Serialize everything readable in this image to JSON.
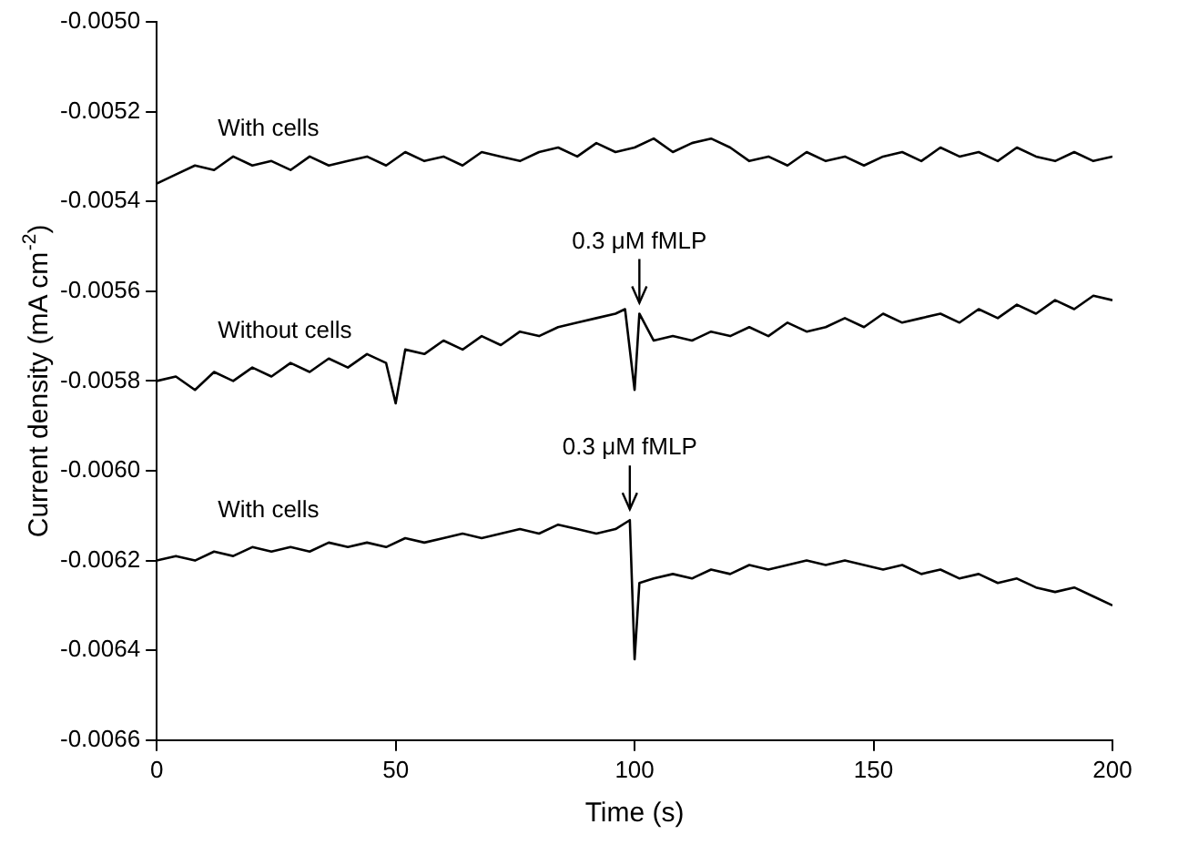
{
  "chart_data": {
    "type": "line",
    "xlabel": "Time (s)",
    "ylabel": "Current density (mA cm$^{-2}$)",
    "xlim": [
      0,
      200
    ],
    "xticks": [
      0,
      50,
      100,
      150,
      200
    ],
    "ylim": [
      -0.0066,
      -0.005
    ],
    "yticks": [
      {
        "value": -0.0066,
        "label": "-0.0066"
      },
      {
        "value": -0.0064,
        "label": "-0.0064"
      },
      {
        "value": -0.0062,
        "label": "-0.0062"
      },
      {
        "value": -0.006,
        "label": "-0.0060"
      },
      {
        "value": -0.0058,
        "label": "-0.0058"
      },
      {
        "value": -0.0056,
        "label": "-0.0056"
      },
      {
        "value": -0.0054,
        "label": "-0.0054"
      },
      {
        "value": -0.0052,
        "label": "-0.0052"
      },
      {
        "value": -0.005,
        "label": "-0.0050"
      }
    ],
    "grid": false,
    "legend": false,
    "marker": "none",
    "line_style": "solid",
    "series": [
      {
        "name": "With cells",
        "color": "#000000",
        "x": [
          0,
          4,
          8,
          12,
          16,
          20,
          24,
          28,
          32,
          36,
          40,
          44,
          48,
          52,
          56,
          60,
          64,
          68,
          72,
          76,
          80,
          84,
          88,
          92,
          96,
          100,
          104,
          108,
          112,
          116,
          120,
          124,
          128,
          132,
          136,
          140,
          144,
          148,
          152,
          156,
          160,
          164,
          168,
          172,
          176,
          180,
          184,
          188,
          192,
          196,
          200
        ],
        "values": [
          -0.00536,
          -0.00534,
          -0.00532,
          -0.00533,
          -0.0053,
          -0.00532,
          -0.00531,
          -0.00533,
          -0.0053,
          -0.00532,
          -0.00531,
          -0.0053,
          -0.00532,
          -0.00529,
          -0.00531,
          -0.0053,
          -0.00532,
          -0.00529,
          -0.0053,
          -0.00531,
          -0.00529,
          -0.00528,
          -0.0053,
          -0.00527,
          -0.00529,
          -0.00528,
          -0.00526,
          -0.00529,
          -0.00527,
          -0.00526,
          -0.00528,
          -0.00531,
          -0.0053,
          -0.00532,
          -0.00529,
          -0.00531,
          -0.0053,
          -0.00532,
          -0.0053,
          -0.00529,
          -0.00531,
          -0.00528,
          -0.0053,
          -0.00529,
          -0.00531,
          -0.00528,
          -0.0053,
          -0.00531,
          -0.00529,
          -0.00531,
          -0.0053
        ]
      },
      {
        "name": "Without cells",
        "color": "#000000",
        "x": [
          0,
          4,
          8,
          12,
          16,
          20,
          24,
          28,
          32,
          36,
          40,
          44,
          48,
          50,
          52,
          56,
          60,
          64,
          68,
          72,
          76,
          80,
          84,
          88,
          92,
          96,
          98,
          100,
          101,
          104,
          108,
          112,
          116,
          120,
          124,
          128,
          132,
          136,
          140,
          144,
          148,
          152,
          156,
          160,
          164,
          168,
          172,
          176,
          180,
          184,
          188,
          192,
          196,
          200
        ],
        "values": [
          -0.0058,
          -0.00579,
          -0.00582,
          -0.00578,
          -0.0058,
          -0.00577,
          -0.00579,
          -0.00576,
          -0.00578,
          -0.00575,
          -0.00577,
          -0.00574,
          -0.00576,
          -0.00585,
          -0.00573,
          -0.00574,
          -0.00571,
          -0.00573,
          -0.0057,
          -0.00572,
          -0.00569,
          -0.0057,
          -0.00568,
          -0.00567,
          -0.00566,
          -0.00565,
          -0.00564,
          -0.00582,
          -0.00565,
          -0.00571,
          -0.0057,
          -0.00571,
          -0.00569,
          -0.0057,
          -0.00568,
          -0.0057,
          -0.00567,
          -0.00569,
          -0.00568,
          -0.00566,
          -0.00568,
          -0.00565,
          -0.00567,
          -0.00566,
          -0.00565,
          -0.00567,
          -0.00564,
          -0.00566,
          -0.00563,
          -0.00565,
          -0.00562,
          -0.00564,
          -0.00561,
          -0.00562
        ]
      },
      {
        "name": "With cells",
        "color": "#000000",
        "x": [
          0,
          4,
          8,
          12,
          16,
          20,
          24,
          28,
          32,
          36,
          40,
          44,
          48,
          52,
          56,
          60,
          64,
          68,
          72,
          76,
          80,
          84,
          88,
          92,
          96,
          99,
          100,
          101,
          104,
          108,
          112,
          116,
          120,
          124,
          128,
          132,
          136,
          140,
          144,
          148,
          152,
          156,
          160,
          164,
          168,
          172,
          176,
          180,
          184,
          188,
          192,
          196,
          200
        ],
        "values": [
          -0.0062,
          -0.00619,
          -0.0062,
          -0.00618,
          -0.00619,
          -0.00617,
          -0.00618,
          -0.00617,
          -0.00618,
          -0.00616,
          -0.00617,
          -0.00616,
          -0.00617,
          -0.00615,
          -0.00616,
          -0.00615,
          -0.00614,
          -0.00615,
          -0.00614,
          -0.00613,
          -0.00614,
          -0.00612,
          -0.00613,
          -0.00614,
          -0.00613,
          -0.00611,
          -0.00642,
          -0.00625,
          -0.00624,
          -0.00623,
          -0.00624,
          -0.00622,
          -0.00623,
          -0.00621,
          -0.00622,
          -0.00621,
          -0.0062,
          -0.00621,
          -0.0062,
          -0.00621,
          -0.00622,
          -0.00621,
          -0.00623,
          -0.00622,
          -0.00624,
          -0.00623,
          -0.00625,
          -0.00624,
          -0.00626,
          -0.00627,
          -0.00626,
          -0.00628,
          -0.0063
        ]
      }
    ],
    "annotations": [
      {
        "text": "0.3 μM fMLP",
        "x": 101,
        "y": -0.00565
      },
      {
        "text": "0.3 μM fMLP",
        "x": 99,
        "y": -0.00611
      }
    ]
  }
}
